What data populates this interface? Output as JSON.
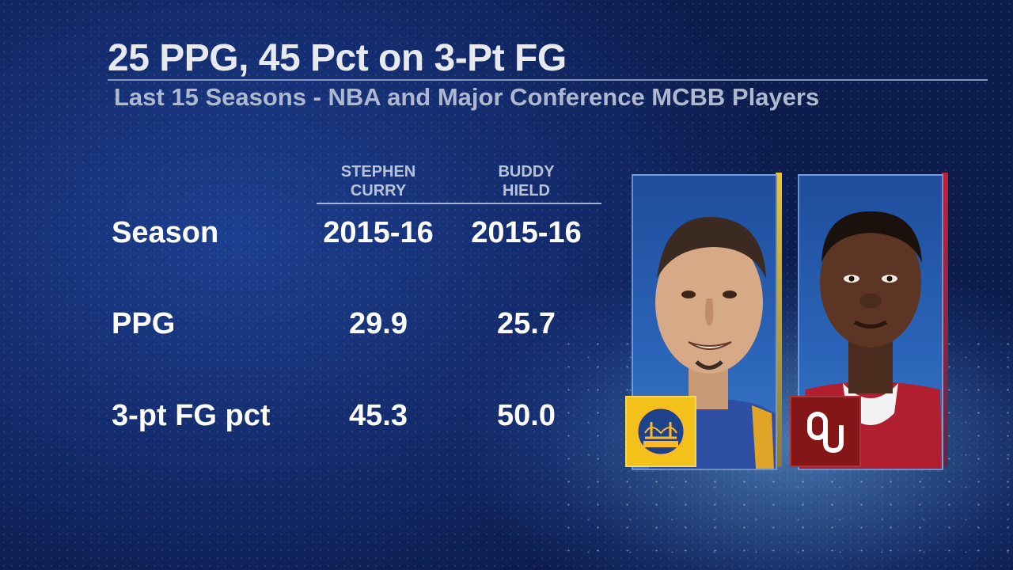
{
  "header": {
    "title": "25 PPG, 45 Pct on 3-Pt FG",
    "subtitle": "Last 15 Seasons - NBA and Major Conference MCBB Players"
  },
  "columns": [
    {
      "line1": "STEPHEN",
      "line2": "CURRY"
    },
    {
      "line1": "BUDDY",
      "line2": "HIELD"
    }
  ],
  "rows": [
    {
      "label": "Season",
      "values": [
        "2015-16",
        "2015-16"
      ]
    },
    {
      "label": "PPG",
      "values": [
        "29.9",
        "25.7"
      ]
    },
    {
      "label": "3-pt FG pct",
      "values": [
        "45.3",
        "50.0"
      ]
    }
  ],
  "players": [
    {
      "icon": "player-photo-curry",
      "team_logo": "warriors-logo-icon",
      "accent": "#e7c43a",
      "jersey": "#2e4fa3"
    },
    {
      "icon": "player-photo-hield",
      "team_logo": "oklahoma-logo-icon",
      "accent": "#c0203a",
      "jersey": "#b01e2f"
    }
  ],
  "colors": {
    "background": "#142c6e",
    "warriors_yellow": "#f2c21a",
    "oklahoma_crimson": "#841617"
  }
}
